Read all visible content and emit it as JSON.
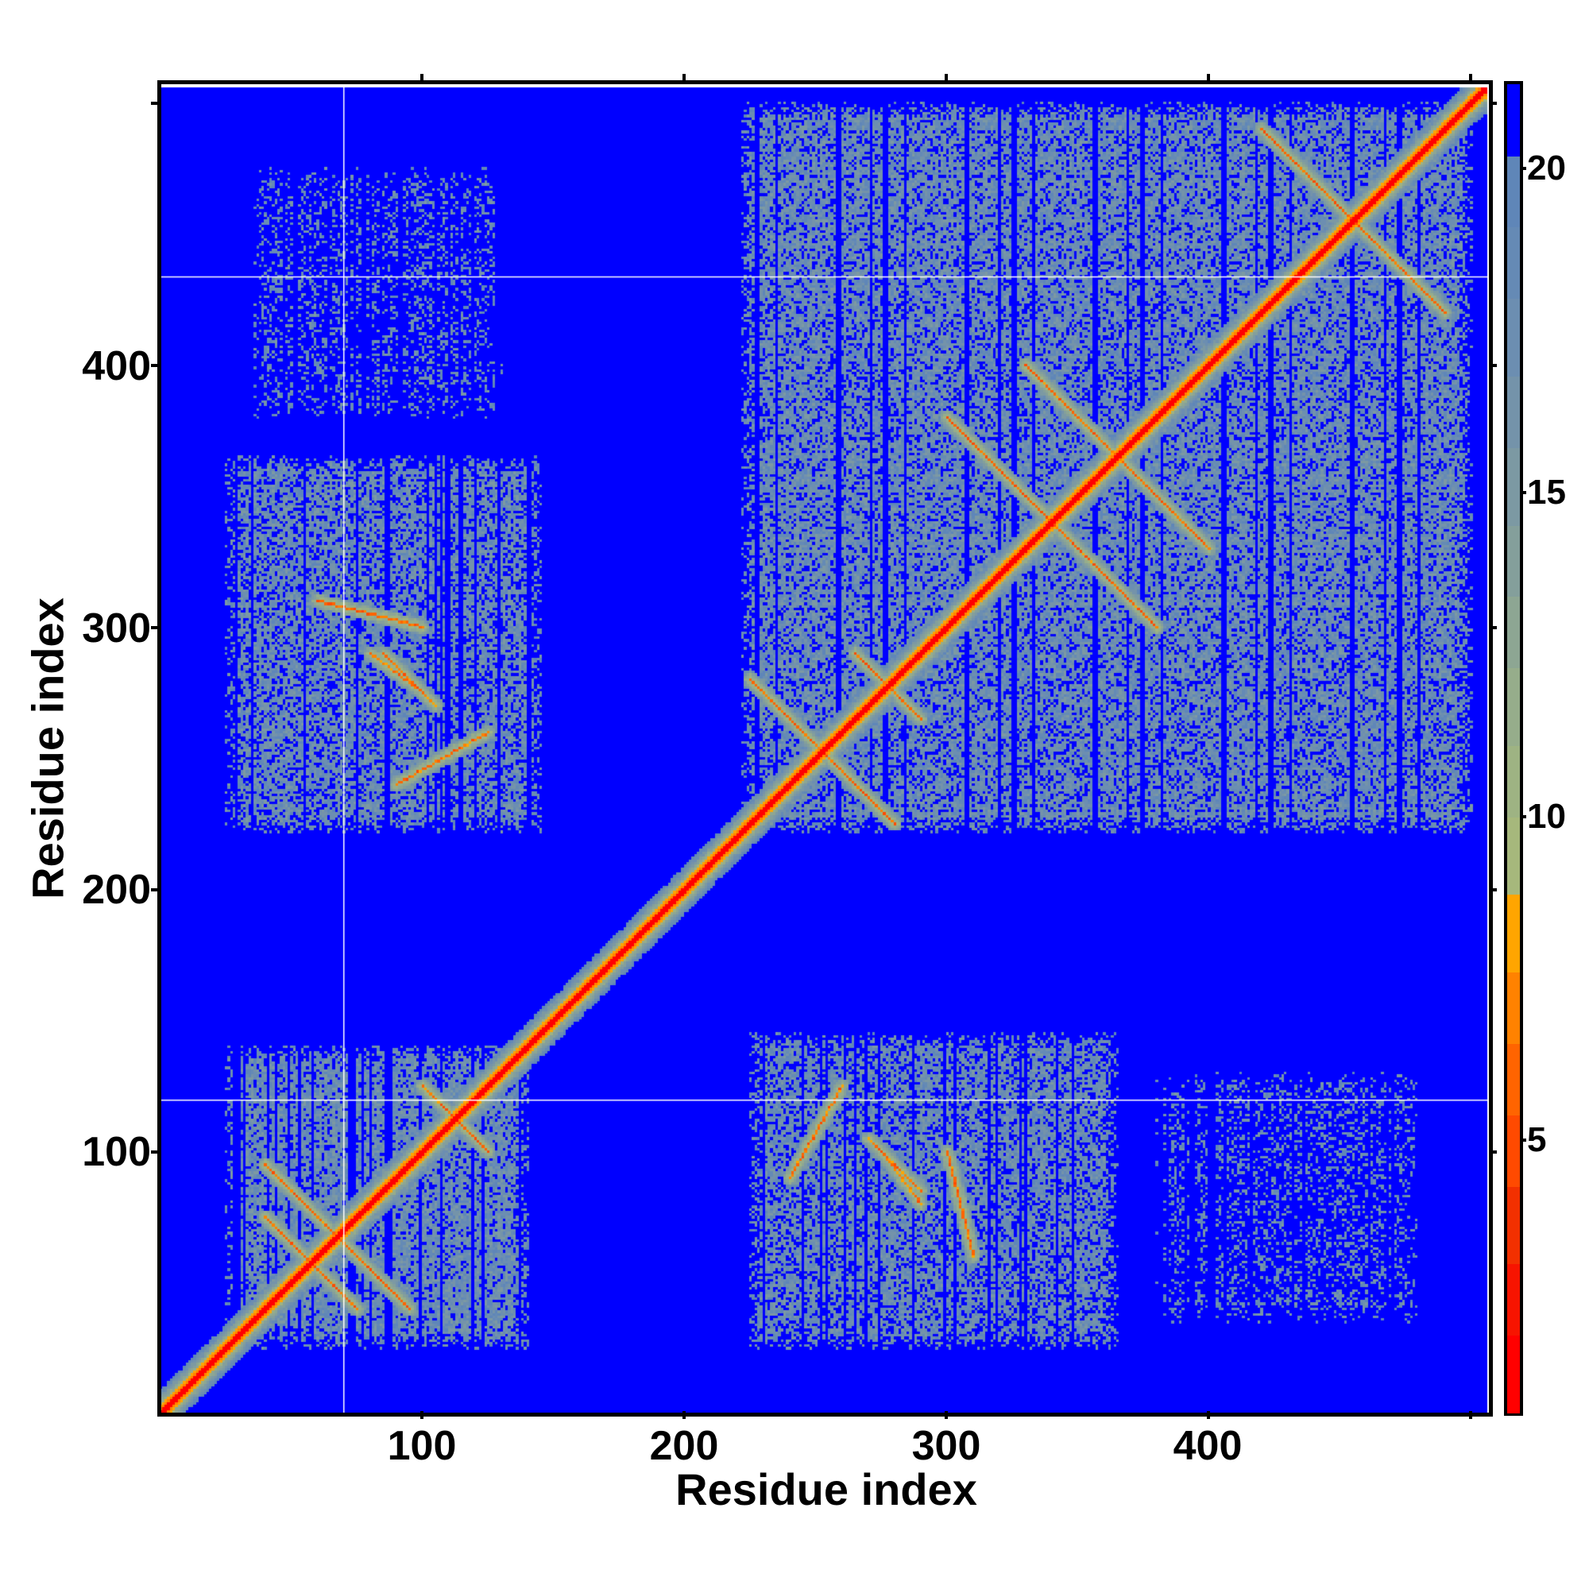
{
  "chart_data": {
    "type": "heatmap",
    "title": "",
    "xlabel": "Residue index",
    "ylabel": "Residue index",
    "xlim": [
      0.5,
      507
    ],
    "ylim": [
      0.5,
      507
    ],
    "xticks": [
      100,
      200,
      300,
      400
    ],
    "yticks": [
      100,
      200,
      300,
      400
    ],
    "minor_ticks": [
      100,
      200,
      300,
      400,
      500
    ],
    "colorbar": {
      "range": [
        0.8,
        21.3
      ],
      "ticks": [
        5,
        10,
        15,
        20
      ],
      "bands": [
        {
          "from": 0.8,
          "to": 2.0,
          "color": "#ff0000"
        },
        {
          "from": 2.0,
          "to": 3.1,
          "color": "#f71400"
        },
        {
          "from": 3.1,
          "to": 4.3,
          "color": "#f23000"
        },
        {
          "from": 4.3,
          "to": 5.4,
          "color": "#ff4a00"
        },
        {
          "from": 5.4,
          "to": 6.5,
          "color": "#ff6400"
        },
        {
          "from": 6.5,
          "to": 7.6,
          "color": "#ff8200"
        },
        {
          "from": 7.6,
          "to": 8.8,
          "color": "#ffa500"
        },
        {
          "from": 8.8,
          "to": 10.0,
          "color": "#a6b87c"
        },
        {
          "from": 10.0,
          "to": 11.1,
          "color": "#9eb383"
        },
        {
          "from": 11.1,
          "to": 12.3,
          "color": "#96ad8b"
        },
        {
          "from": 12.3,
          "to": 13.4,
          "color": "#8da693"
        },
        {
          "from": 13.4,
          "to": 14.5,
          "color": "#849f9b"
        },
        {
          "from": 14.5,
          "to": 15.7,
          "color": "#7c99a3"
        },
        {
          "from": 15.7,
          "to": 16.8,
          "color": "#7493aa"
        },
        {
          "from": 16.8,
          "to": 18.0,
          "color": "#6c8eb1"
        },
        {
          "from": 18.0,
          "to": 19.1,
          "color": "#658ab5"
        },
        {
          "from": 19.1,
          "to": 20.2,
          "color": "#5f86b8"
        },
        {
          "from": 20.2,
          "to": 21.3,
          "color": "#0000ff"
        }
      ]
    },
    "n_residues": 506,
    "contact_regions": [
      {
        "x": [
          25,
          140
        ],
        "y": [
          25,
          140
        ],
        "density": 0.8
      },
      {
        "x": [
          222,
          500
        ],
        "y": [
          222,
          500
        ],
        "density": 0.75
      },
      {
        "x": [
          25,
          145
        ],
        "y": [
          222,
          365
        ],
        "density": 0.7
      },
      {
        "x": [
          225,
          365
        ],
        "y": [
          25,
          145
        ],
        "density": 0.7
      },
      {
        "x": [
          35,
          130
        ],
        "y": [
          380,
          475
        ],
        "density": 0.3
      },
      {
        "x": [
          380,
          480
        ],
        "y": [
          35,
          130
        ],
        "density": 0.3
      }
    ],
    "contact_lines": [
      [
        [
          40,
          95
        ],
        [
          95,
          40
        ]
      ],
      [
        [
          40,
          75
        ],
        [
          75,
          40
        ]
      ],
      [
        [
          100,
          125
        ],
        [
          125,
          100
        ]
      ],
      [
        [
          225,
          280
        ],
        [
          280,
          225
        ]
      ],
      [
        [
          265,
          290
        ],
        [
          290,
          265
        ]
      ],
      [
        [
          300,
          380
        ],
        [
          380,
          300
        ]
      ],
      [
        [
          330,
          400
        ],
        [
          400,
          330
        ]
      ],
      [
        [
          420,
          490
        ],
        [
          490,
          420
        ]
      ],
      [
        [
          80,
          290
        ],
        [
          100,
          275
        ]
      ],
      [
        [
          60,
          310
        ],
        [
          100,
          300
        ]
      ],
      [
        [
          270,
          105
        ],
        [
          290,
          85
        ]
      ],
      [
        [
          240,
          90
        ],
        [
          260,
          125
        ]
      ]
    ],
    "gap_lines": {
      "x": [
        70
      ],
      "y": [
        120,
        434
      ]
    },
    "background_value": 21
  }
}
